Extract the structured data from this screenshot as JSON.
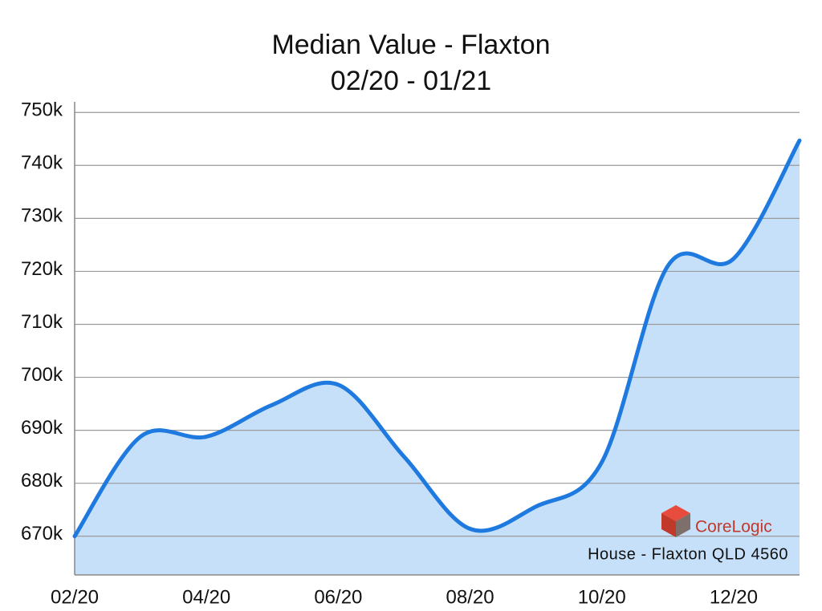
{
  "chart_data": {
    "type": "area",
    "title": "Median Value - Flaxton",
    "subtitle": "02/20 - 01/21",
    "categories": [
      "02/20",
      null,
      "04/20",
      null,
      "06/20",
      null,
      "08/20",
      null,
      "10/20",
      null,
      "12/20",
      null
    ],
    "series": [
      {
        "name": "House - Flaxton QLD 4560",
        "color": "#1f7ae0",
        "values": [
          670000,
          688800,
          688800,
          694800,
          698600,
          685000,
          671400,
          675600,
          684000,
          721000,
          722400,
          744700
        ]
      }
    ],
    "ylim": [
      662700,
      752000
    ],
    "yticks": [
      {
        "value": 670000,
        "label": "670k"
      },
      {
        "value": 680000,
        "label": "680k"
      },
      {
        "value": 690000,
        "label": "690k"
      },
      {
        "value": 700000,
        "label": "700k"
      },
      {
        "value": 710000,
        "label": "710k"
      },
      {
        "value": 720000,
        "label": "720k"
      },
      {
        "value": 730000,
        "label": "730k"
      },
      {
        "value": 740000,
        "label": "740k"
      },
      {
        "value": 750000,
        "label": "750k"
      }
    ],
    "grid": true,
    "fill_color": "#c6e0f9",
    "watermark": "CoreLogic"
  }
}
